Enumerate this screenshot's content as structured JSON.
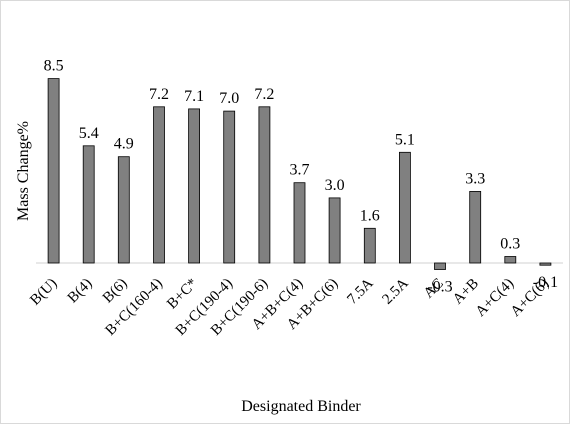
{
  "chart_data": {
    "type": "bar",
    "title": "",
    "xlabel": "Designated Binder",
    "ylabel": "Mass Change%",
    "categories": [
      "B(U)",
      "B(4)",
      "B(6)",
      "B+C(160-4)",
      "B+C*",
      "B+C(190-4)",
      "B+C(190-6)",
      "A+B+C(4)",
      "A+B+C(6)",
      "7.5A",
      "2.5A",
      "AC",
      "A+B",
      "A+C(4)",
      "A+C(6)"
    ],
    "values": [
      8.5,
      5.4,
      4.9,
      7.2,
      7.1,
      7.0,
      7.2,
      3.7,
      3.0,
      1.6,
      5.1,
      -0.3,
      3.3,
      0.3,
      -0.1
    ],
    "data_labels": [
      "8.5",
      "5.4",
      "4.9",
      "7.2",
      "7.1",
      "7.0",
      "7.2",
      "3.7",
      "3.0",
      "1.6",
      "5.1",
      "-0.3",
      "3.3",
      "0.3",
      "-0.1"
    ],
    "bar_color": "#808080",
    "grid": false,
    "legend": "none"
  }
}
